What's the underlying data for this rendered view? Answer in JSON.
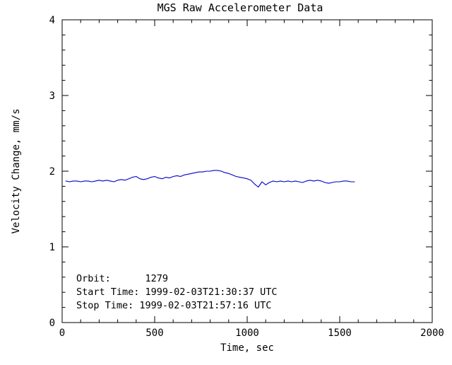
{
  "chart_data": {
    "type": "line",
    "title": "MGS Raw Accelerometer Data",
    "xlabel": "Time, sec",
    "ylabel": "Velocity Change, mm/s",
    "xlim": [
      0,
      2000
    ],
    "ylim": [
      0,
      4
    ],
    "xticks": [
      0,
      500,
      1000,
      1500,
      2000
    ],
    "yticks": [
      0,
      1,
      2,
      3,
      4
    ],
    "x_minor_interval": 100,
    "y_minor_interval": 0.2,
    "grid": false,
    "background_color": "#ffffff",
    "axis_color": "#000000",
    "line_color": "#0000cc",
    "series": [
      {
        "name": "velocity-change",
        "x": [
          20,
          40,
          60,
          80,
          100,
          120,
          140,
          160,
          180,
          200,
          220,
          240,
          260,
          280,
          300,
          320,
          340,
          360,
          380,
          400,
          420,
          440,
          460,
          480,
          500,
          520,
          540,
          560,
          580,
          600,
          620,
          640,
          660,
          680,
          700,
          720,
          740,
          760,
          780,
          800,
          820,
          840,
          860,
          880,
          900,
          920,
          940,
          960,
          980,
          1000,
          1020,
          1040,
          1060,
          1080,
          1100,
          1120,
          1140,
          1160,
          1180,
          1200,
          1220,
          1240,
          1260,
          1280,
          1300,
          1320,
          1340,
          1360,
          1380,
          1400,
          1420,
          1440,
          1460,
          1480,
          1500,
          1520,
          1540,
          1560,
          1580
        ],
        "y": [
          1.87,
          1.86,
          1.87,
          1.87,
          1.86,
          1.87,
          1.87,
          1.86,
          1.87,
          1.88,
          1.87,
          1.88,
          1.87,
          1.86,
          1.88,
          1.89,
          1.88,
          1.9,
          1.92,
          1.93,
          1.9,
          1.89,
          1.9,
          1.92,
          1.93,
          1.91,
          1.9,
          1.92,
          1.91,
          1.93,
          1.94,
          1.93,
          1.95,
          1.96,
          1.97,
          1.98,
          1.99,
          1.99,
          2.0,
          2.0,
          2.01,
          2.01,
          2.0,
          1.98,
          1.97,
          1.95,
          1.93,
          1.92,
          1.91,
          1.9,
          1.88,
          1.83,
          1.79,
          1.86,
          1.82,
          1.85,
          1.87,
          1.86,
          1.87,
          1.86,
          1.87,
          1.86,
          1.87,
          1.86,
          1.85,
          1.87,
          1.88,
          1.87,
          1.88,
          1.87,
          1.85,
          1.84,
          1.85,
          1.86,
          1.86,
          1.87,
          1.87,
          1.86,
          1.86
        ]
      }
    ],
    "annotations": [
      "Orbit:      1279",
      "Start Time: 1999-02-03T21:30:37 UTC",
      "Stop Time: 1999-02-03T21:57:16 UTC"
    ]
  }
}
